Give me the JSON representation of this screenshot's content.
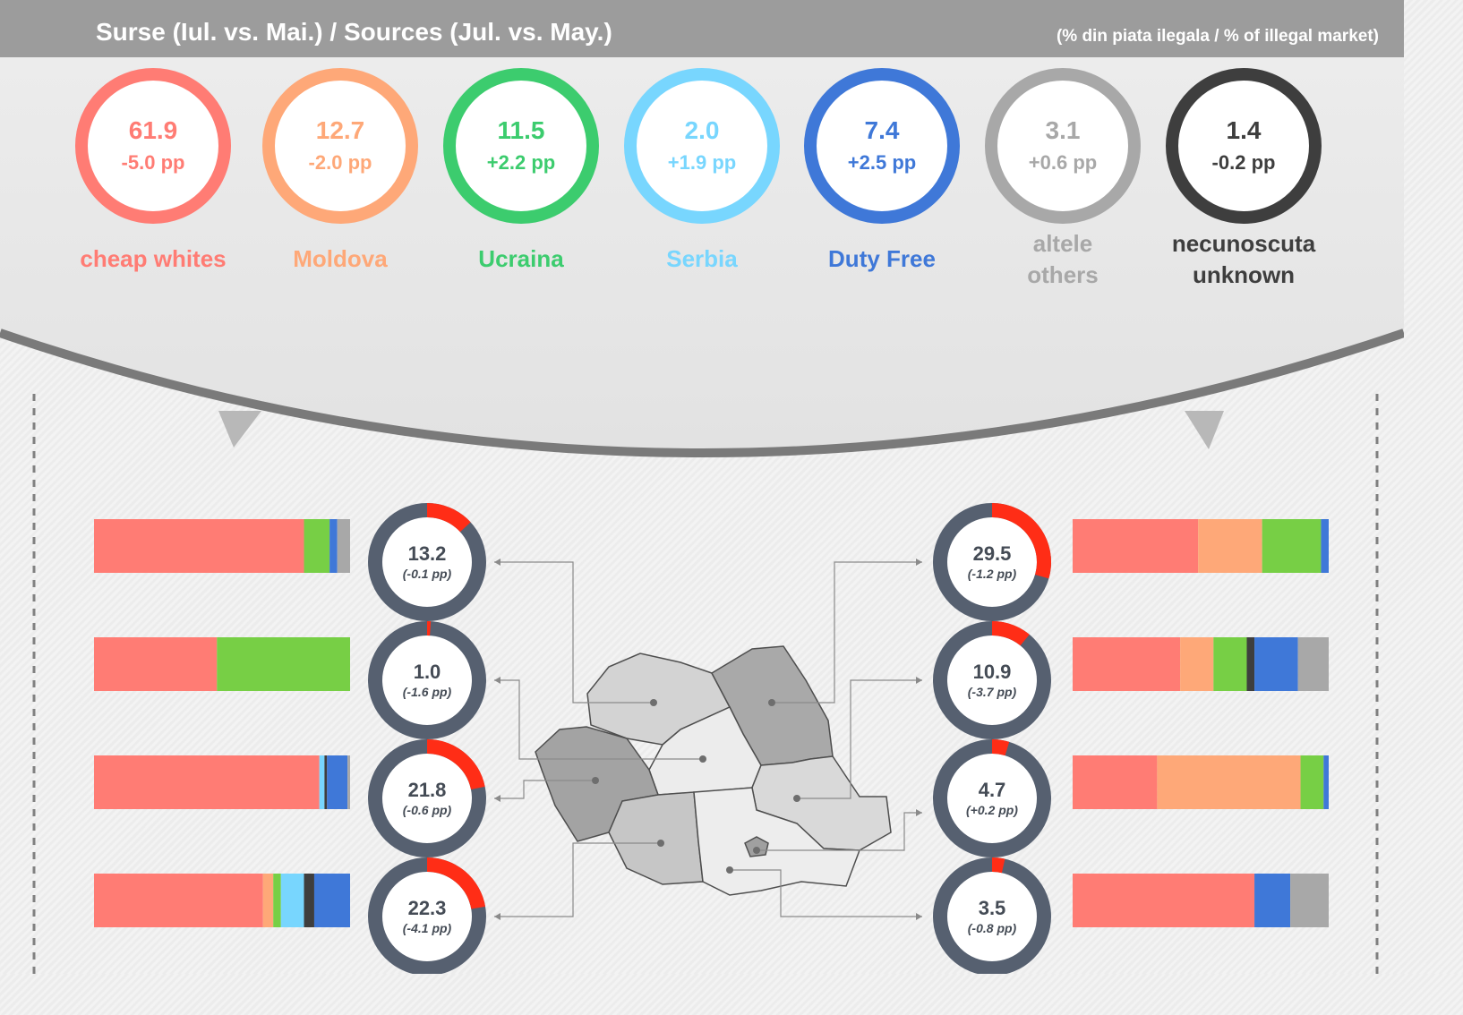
{
  "header": {
    "title": "Surse (Iul. vs. Mai.) / Sources (Jul. vs. May.)",
    "subtitle": "(% din piata ilegala / % of illegal market)"
  },
  "colors": {
    "cheap_whites": "#ff7c74",
    "moldova": "#fea878",
    "ucraina": "#3ccc6e",
    "ucraina_bar": "#77cf45",
    "serbia": "#78d6fe",
    "duty_free": "#3f78d8",
    "others": "#a8a8a8",
    "unknown": "#3e3e3e",
    "donut_track": "#566070",
    "donut_highlight": "#ff2d16"
  },
  "chart_data": [
    {
      "type": "pie",
      "title": "Surse (Iul. vs. Mai.) / Sources (Jul. vs. May.)",
      "subtitle": "(% din piata ilegala / % of illegal market)",
      "sources": [
        {
          "label": "cheap whites",
          "value": "61.9",
          "change": "-5.0 pp",
          "color": "#ff7c74"
        },
        {
          "label": "Moldova",
          "value": "12.7",
          "change": "-2.0 pp",
          "color": "#fea878"
        },
        {
          "label": "Ucraina",
          "value": "11.5",
          "change": "+2.2 pp",
          "color": "#3ccc6e"
        },
        {
          "label": "Serbia",
          "value": "2.0",
          "change": "+1.9 pp",
          "color": "#78d6fe"
        },
        {
          "label": "Duty Free",
          "value": "7.4",
          "change": "+2.5 pp",
          "color": "#3f78d8"
        },
        {
          "label": "altele others",
          "label_line1": "altele",
          "label_line2": "others",
          "value": "3.1",
          "change": "+0.6 pp",
          "color": "#a8a8a8"
        },
        {
          "label": "necunoscuta unknown",
          "label_line1": "necunoscuta",
          "label_line2": "unknown",
          "value": "1.4",
          "change": "-0.2 pp",
          "color": "#3e3e3e"
        }
      ]
    },
    {
      "type": "bar",
      "stacked": true,
      "series_order": [
        "cheap whites",
        "Moldova",
        "Ucraina",
        "Serbia",
        "unknown",
        "Duty Free",
        "others"
      ],
      "regions": [
        {
          "side": "left",
          "value": 13.2,
          "label": "13.2",
          "change": "(-0.1 pp)",
          "mix": [
            82,
            0,
            10,
            0,
            0,
            3,
            5
          ]
        },
        {
          "side": "left",
          "value": 1.0,
          "label": "1.0",
          "change": "(-1.6 pp)",
          "mix": [
            48,
            0,
            52,
            0,
            0,
            0,
            0
          ]
        },
        {
          "side": "left",
          "value": 21.8,
          "label": "21.8",
          "change": "(-0.6 pp)",
          "mix": [
            88,
            0,
            0,
            2,
            1,
            8,
            1
          ]
        },
        {
          "side": "left",
          "value": 22.3,
          "label": "22.3",
          "change": "(-4.1 pp)",
          "mix": [
            66,
            4,
            3,
            9,
            4,
            14,
            0
          ]
        },
        {
          "side": "right",
          "value": 29.5,
          "label": "29.5",
          "change": "(-1.2 pp)",
          "mix": [
            49,
            25,
            23,
            0,
            0,
            3,
            0
          ]
        },
        {
          "side": "right",
          "value": 10.9,
          "label": "10.9",
          "change": "(-3.7 pp)",
          "mix": [
            42,
            13,
            13,
            0,
            3,
            17,
            12
          ]
        },
        {
          "side": "right",
          "value": 4.7,
          "label": "4.7",
          "change": "(+0.2 pp)",
          "mix": [
            33,
            56,
            9,
            0,
            0,
            2,
            0
          ]
        },
        {
          "side": "right",
          "value": 3.5,
          "label": "3.5",
          "change": "(-0.8 pp)",
          "mix": [
            71,
            0,
            0,
            0,
            0,
            14,
            15
          ]
        }
      ]
    }
  ]
}
